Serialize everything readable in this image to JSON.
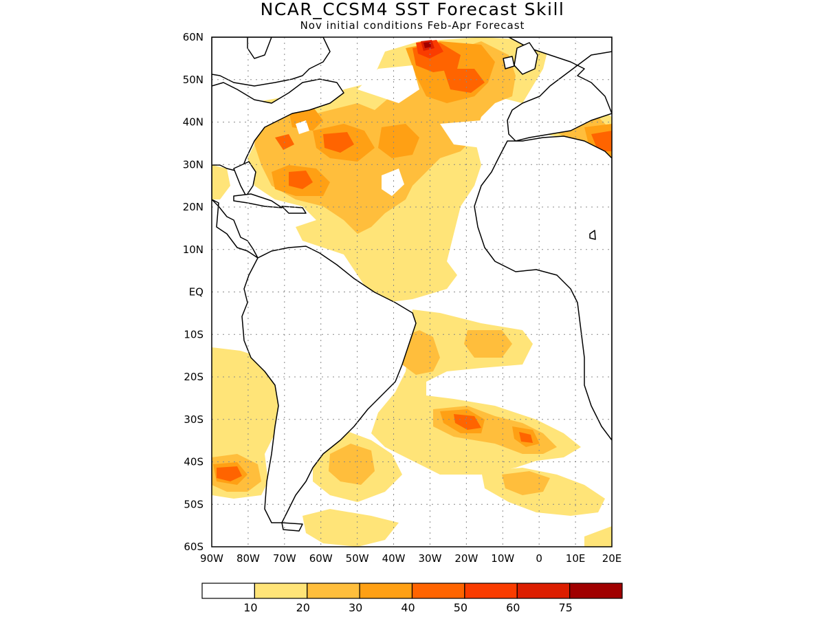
{
  "title": "NCAR_CCSM4 SST Forecast Skill",
  "subtitle": "Nov initial conditions  Feb-Apr Forecast",
  "map": {
    "lon_range": [
      -90,
      20
    ],
    "lat_range": [
      -60,
      60
    ],
    "lat_ticks": [
      {
        "lat": 60,
        "label": "60N"
      },
      {
        "lat": 50,
        "label": "50N"
      },
      {
        "lat": 40,
        "label": "40N"
      },
      {
        "lat": 30,
        "label": "30N"
      },
      {
        "lat": 20,
        "label": "20N"
      },
      {
        "lat": 10,
        "label": "10N"
      },
      {
        "lat": 0,
        "label": "EQ"
      },
      {
        "lat": -10,
        "label": "10S"
      },
      {
        "lat": -20,
        "label": "20S"
      },
      {
        "lat": -30,
        "label": "30S"
      },
      {
        "lat": -40,
        "label": "40S"
      },
      {
        "lat": -50,
        "label": "50S"
      },
      {
        "lat": -60,
        "label": "60S"
      }
    ],
    "lon_ticks": [
      {
        "lon": -90,
        "label": "90W"
      },
      {
        "lon": -80,
        "label": "80W"
      },
      {
        "lon": -70,
        "label": "70W"
      },
      {
        "lon": -60,
        "label": "60W"
      },
      {
        "lon": -50,
        "label": "50W"
      },
      {
        "lon": -40,
        "label": "40W"
      },
      {
        "lon": -30,
        "label": "30W"
      },
      {
        "lon": -20,
        "label": "20W"
      },
      {
        "lon": -10,
        "label": "10W"
      },
      {
        "lon": 0,
        "label": "0"
      },
      {
        "lon": 10,
        "label": "10E"
      },
      {
        "lon": 20,
        "label": "20E"
      }
    ],
    "grid": true
  },
  "colorbar": {
    "colors": [
      "#ffffff",
      "#ffe478",
      "#ffbe3c",
      "#ffa014",
      "#ff6400",
      "#fa3c00",
      "#dc1e00",
      "#a00000"
    ],
    "labels": [
      "10",
      "20",
      "30",
      "40",
      "50",
      "60",
      "75"
    ]
  },
  "colors": {
    "c10": "#ffe478",
    "c20": "#ffbe3c",
    "c30": "#ffa014",
    "c40": "#ff6400",
    "c50": "#fa3c00",
    "c60": "#dc1e00",
    "c75": "#a00000"
  }
}
